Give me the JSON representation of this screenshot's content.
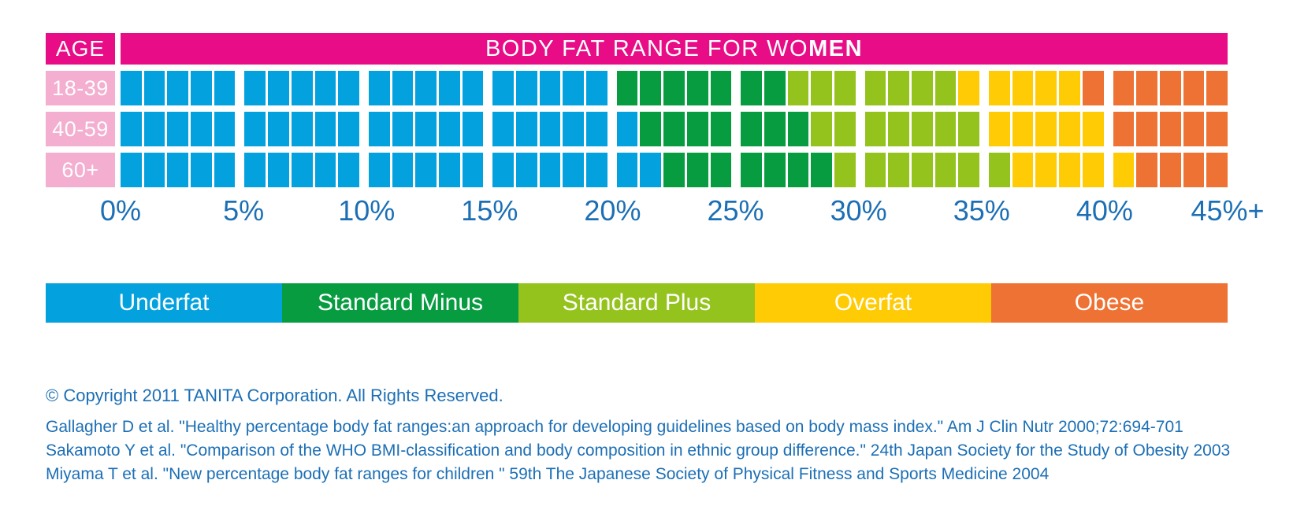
{
  "page": {
    "background": "#FFFFFF"
  },
  "header": {
    "age_label": "AGE",
    "title_prefix": "BODY FAT RANGE FOR WO",
    "title_bold": "MEN",
    "title_full": "BODY FAT RANGE FOR WOMEN",
    "bar_color": "#E80C86",
    "row_label_color": "#F3AED0"
  },
  "chart_data": {
    "type": "heatmap",
    "title": "BODY FAT RANGE FOR WOMEN",
    "x_axis": {
      "unit": "% body fat",
      "range": [
        0,
        45
      ],
      "tick_labels": [
        "0%",
        "5%",
        "10%",
        "15%",
        "20%",
        "25%",
        "30%",
        "35%",
        "40%",
        "45%+"
      ],
      "cells_per_row": 45,
      "cells_per_group": 5,
      "cell_size_percent": 1
    },
    "categories": [
      {
        "key": "underfat",
        "name": "Underfat",
        "color": "#04A1DF"
      },
      {
        "key": "standard_minus",
        "name": "Standard Minus",
        "color": "#089C41"
      },
      {
        "key": "standard_plus",
        "name": "Standard Plus",
        "color": "#95C31E"
      },
      {
        "key": "overfat",
        "name": "Overfat",
        "color": "#FFCB05"
      },
      {
        "key": "obese",
        "name": "Obese",
        "color": "#EE7233"
      }
    ],
    "rows": [
      {
        "age": "18-39",
        "ranges": {
          "underfat": [
            0,
            20
          ],
          "standard_minus": [
            20,
            27
          ],
          "standard_plus": [
            27,
            34
          ],
          "overfat": [
            34,
            39
          ],
          "obese": [
            39,
            45
          ]
        }
      },
      {
        "age": "40-59",
        "ranges": {
          "underfat": [
            0,
            21
          ],
          "standard_minus": [
            21,
            28
          ],
          "standard_plus": [
            28,
            35
          ],
          "overfat": [
            35,
            40
          ],
          "obese": [
            40,
            45
          ]
        }
      },
      {
        "age": "60+",
        "ranges": {
          "underfat": [
            0,
            22
          ],
          "standard_minus": [
            22,
            29
          ],
          "standard_plus": [
            29,
            36
          ],
          "overfat": [
            36,
            41
          ],
          "obese": [
            41,
            45
          ]
        }
      }
    ],
    "legend_position": "bottom",
    "grid": false
  },
  "axis_color": "#1C6FB5",
  "footer": {
    "text_color": "#1C6FB5",
    "copyright": "© Copyright 2011 TANITA Corporation. All Rights Reserved.",
    "citations": [
      "Gallagher D et al. \"Healthy percentage body fat ranges:an approach for developing guidelines based on body mass index.\" Am J Clin Nutr 2000;72:694-701",
      "Sakamoto Y et al. \"Comparison of the WHO BMI-classification and body composition in ethnic group difference.\" 24th Japan Society for the Study of Obesity 2003",
      "Miyama T et al. \"New percentage body fat ranges for children \" 59th The Japanese Society of Physical Fitness and Sports Medicine 2004"
    ]
  }
}
